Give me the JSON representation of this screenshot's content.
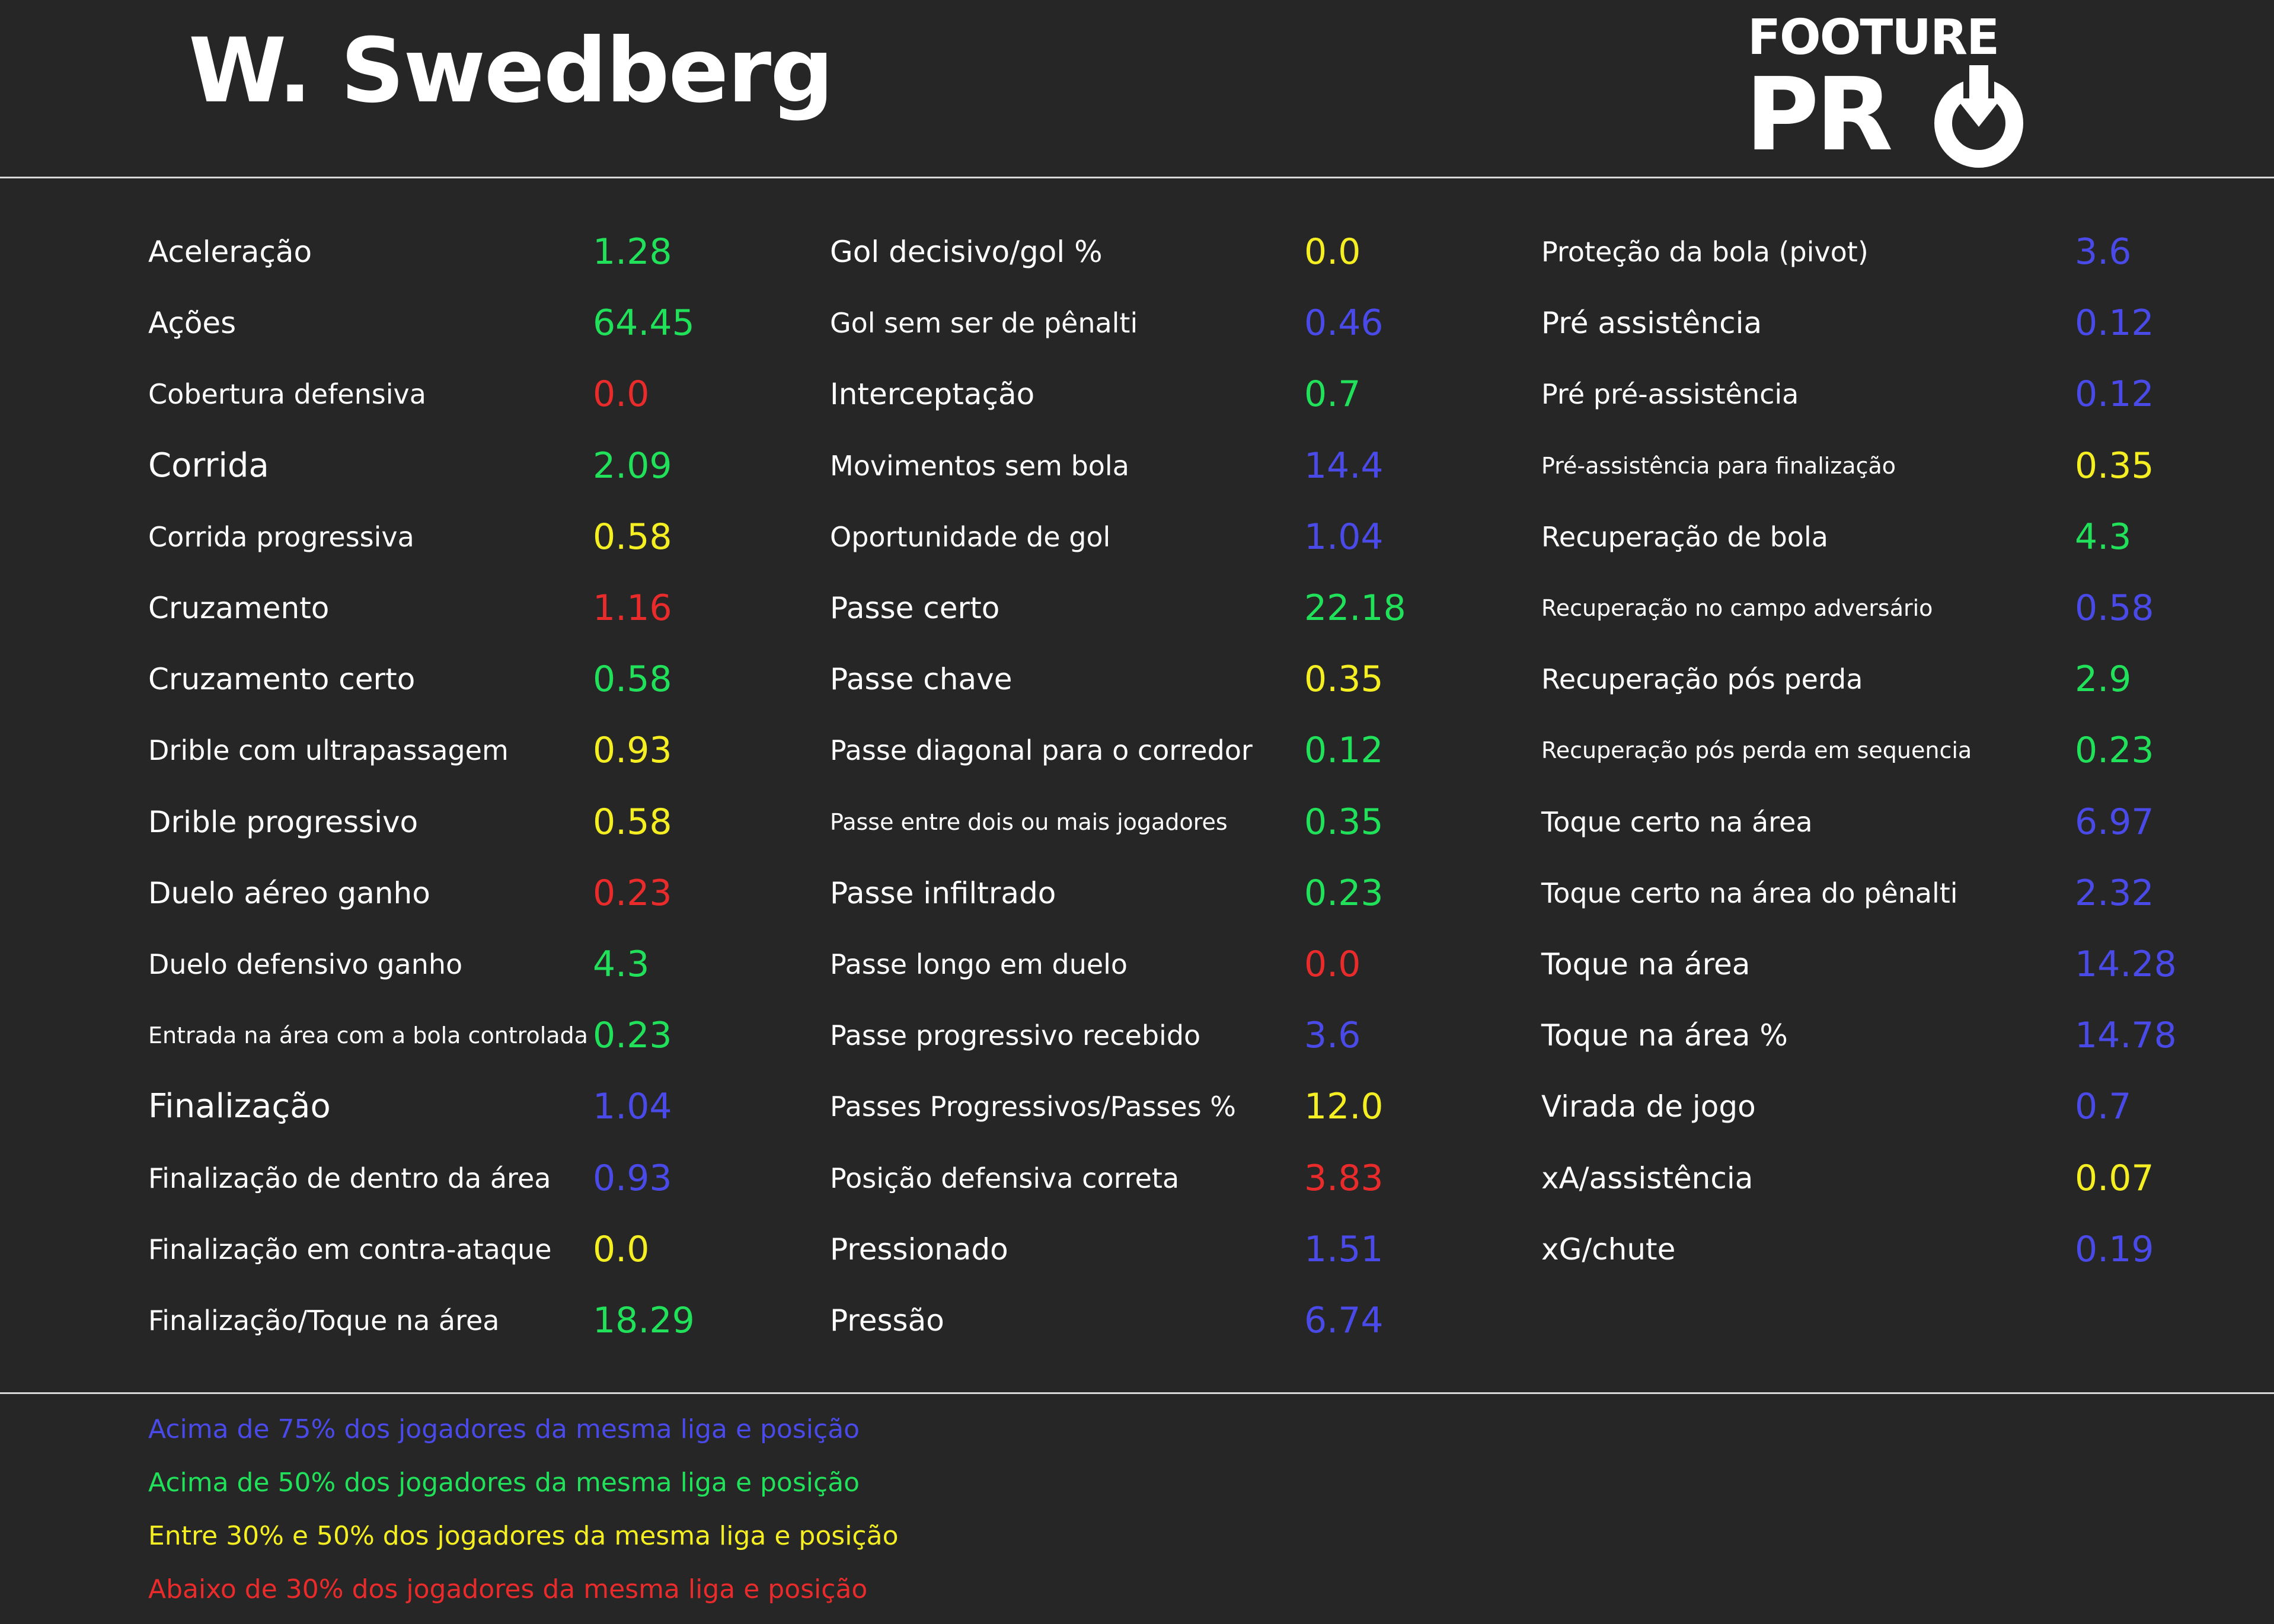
{
  "header": {
    "player_name": "W. Swedberg",
    "logo_top": "FOOTURE",
    "logo_bottom": "PR"
  },
  "colors": {
    "background": "#262626",
    "blue": "#4a4ae8",
    "green": "#21e05a",
    "yellow": "#f4ee23",
    "red": "#ea2b2b"
  },
  "columns": [
    {
      "stats": [
        {
          "label": "Aceleração",
          "value": "1.28",
          "color": "green"
        },
        {
          "label": "Ações",
          "value": "64.45",
          "color": "green"
        },
        {
          "label": "Cobertura defensiva",
          "value": "0.0",
          "color": "red"
        },
        {
          "label": "Corrida",
          "value": "2.09",
          "color": "green"
        },
        {
          "label": "Corrida progressiva",
          "value": "0.58",
          "color": "yellow"
        },
        {
          "label": "Cruzamento",
          "value": "1.16",
          "color": "red"
        },
        {
          "label": "Cruzamento certo",
          "value": "0.58",
          "color": "green"
        },
        {
          "label": "Drible com ultrapassagem",
          "value": "0.93",
          "color": "yellow"
        },
        {
          "label": "Drible progressivo",
          "value": "0.58",
          "color": "yellow"
        },
        {
          "label": "Duelo aéreo ganho",
          "value": "0.23",
          "color": "red"
        },
        {
          "label": "Duelo defensivo ganho",
          "value": "4.3",
          "color": "green"
        },
        {
          "label": "Entrada na área com a bola controlada",
          "value": "0.23",
          "color": "green"
        },
        {
          "label": "Finalização",
          "value": "1.04",
          "color": "blue"
        },
        {
          "label": "Finalização de dentro da área",
          "value": "0.93",
          "color": "blue"
        },
        {
          "label": "Finalização em contra-ataque",
          "value": "0.0",
          "color": "yellow"
        },
        {
          "label": "Finalização/Toque na área",
          "value": "18.29",
          "color": "green"
        }
      ]
    },
    {
      "stats": [
        {
          "label": "Gol decisivo/gol %",
          "value": "0.0",
          "color": "yellow"
        },
        {
          "label": "Gol sem ser de pênalti",
          "value": "0.46",
          "color": "blue"
        },
        {
          "label": "Interceptação",
          "value": "0.7",
          "color": "green"
        },
        {
          "label": "Movimentos sem bola",
          "value": "14.4",
          "color": "blue"
        },
        {
          "label": "Oportunidade de gol",
          "value": "1.04",
          "color": "blue"
        },
        {
          "label": "Passe certo",
          "value": "22.18",
          "color": "green"
        },
        {
          "label": "Passe chave",
          "value": "0.35",
          "color": "yellow"
        },
        {
          "label": "Passe diagonal para o corredor",
          "value": "0.12",
          "color": "green"
        },
        {
          "label": "Passe entre dois ou mais jogadores",
          "value": "0.35",
          "color": "green"
        },
        {
          "label": "Passe infiltrado",
          "value": "0.23",
          "color": "green"
        },
        {
          "label": "Passe longo em duelo",
          "value": "0.0",
          "color": "red"
        },
        {
          "label": "Passe progressivo recebido",
          "value": "3.6",
          "color": "blue"
        },
        {
          "label": "Passes Progressivos/Passes %",
          "value": "12.0",
          "color": "yellow"
        },
        {
          "label": "Posição defensiva correta",
          "value": "3.83",
          "color": "red"
        },
        {
          "label": "Pressionado",
          "value": "1.51",
          "color": "blue"
        },
        {
          "label": "Pressão",
          "value": "6.74",
          "color": "blue"
        }
      ]
    },
    {
      "stats": [
        {
          "label": "Proteção da bola (pivot)",
          "value": "3.6",
          "color": "blue"
        },
        {
          "label": "Pré assistência",
          "value": "0.12",
          "color": "blue"
        },
        {
          "label": "Pré pré-assistência",
          "value": "0.12",
          "color": "blue"
        },
        {
          "label": "Pré-assistência para finalização",
          "value": "0.35",
          "color": "yellow"
        },
        {
          "label": "Recuperação de bola",
          "value": "4.3",
          "color": "green"
        },
        {
          "label": "Recuperação no campo adversário",
          "value": "0.58",
          "color": "blue"
        },
        {
          "label": "Recuperação pós perda",
          "value": "2.9",
          "color": "green"
        },
        {
          "label": "Recuperação pós perda em sequencia",
          "value": "0.23",
          "color": "green"
        },
        {
          "label": "Toque certo na área",
          "value": "6.97",
          "color": "blue"
        },
        {
          "label": "Toque certo na área do pênalti",
          "value": "2.32",
          "color": "blue"
        },
        {
          "label": "Toque na área",
          "value": "14.28",
          "color": "blue"
        },
        {
          "label": "Toque na área %",
          "value": "14.78",
          "color": "blue"
        },
        {
          "label": "Virada de jogo",
          "value": "0.7",
          "color": "blue"
        },
        {
          "label": "xA/assistência",
          "value": "0.07",
          "color": "yellow"
        },
        {
          "label": "xG/chute",
          "value": "0.19",
          "color": "blue"
        }
      ]
    }
  ],
  "legend": [
    {
      "text": "Acima de 75% dos jogadores da mesma liga e posição",
      "color": "blue"
    },
    {
      "text": "Acima de 50% dos jogadores da mesma liga e posição",
      "color": "green"
    },
    {
      "text": "Entre 30% e 50% dos jogadores da mesma liga e posição",
      "color": "yellow"
    },
    {
      "text": "Abaixo de 30% dos jogadores da mesma liga e posição",
      "color": "red"
    }
  ]
}
